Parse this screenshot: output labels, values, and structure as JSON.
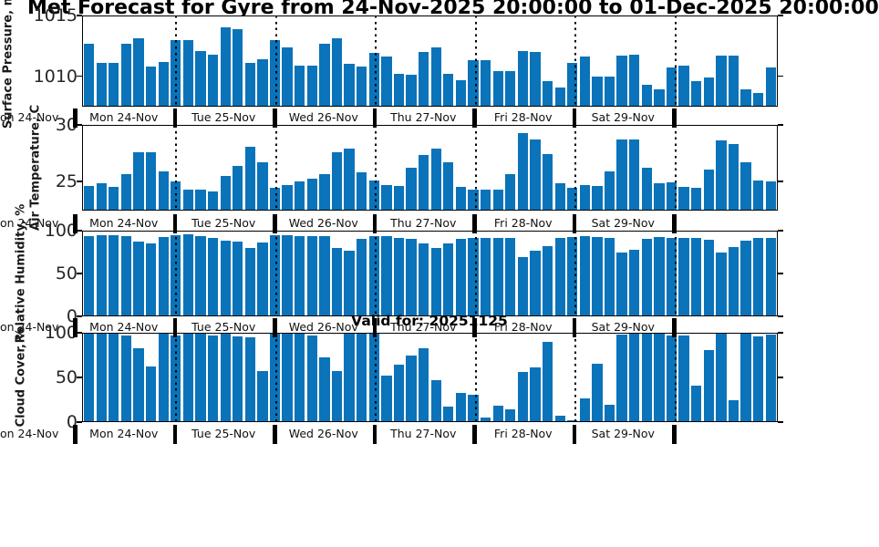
{
  "title": "Met Forecast for Gyre from 24-Nov-2025 20:00:00 to 01-Dec-2025 20:00:00",
  "valid_for": "Valid for: 20251125",
  "colors": {
    "bar": "#0a73b9",
    "axis": "#000000",
    "tick_text": "#262626"
  },
  "x_axis": {
    "clipped_left_label": "on 24-Nov",
    "day_labels": [
      "Mon 24-Nov",
      "Tue 25-Nov",
      "Wed 26-Nov",
      "Thu 27-Nov",
      "Fri 28-Nov",
      "Sat 29-Nov",
      ""
    ],
    "bars_per_day": 8
  },
  "chart_data": [
    {
      "type": "bar",
      "ylabel": "Surface Pressure, m",
      "yticks": [
        "1015",
        "1010"
      ],
      "ytick_values": [
        1015,
        1010
      ],
      "ylim": [
        1007.5,
        1015
      ],
      "values": [
        1012.7,
        1011.1,
        1011.1,
        1012.7,
        1013.1,
        1010.8,
        1011.2,
        1013.0,
        1013.0,
        1012.1,
        1011.8,
        1014.0,
        1013.9,
        1011.1,
        1011.4,
        1013.0,
        1012.4,
        1010.9,
        1010.9,
        1012.7,
        1013.1,
        1011.0,
        1010.8,
        1011.9,
        1011.6,
        1010.2,
        1010.1,
        1012.0,
        1012.4,
        1010.2,
        1009.7,
        1011.3,
        1011.3,
        1010.4,
        1010.4,
        1012.1,
        1012.0,
        1009.6,
        1009.1,
        1011.1,
        1011.6,
        1010.0,
        1010.0,
        1011.7,
        1011.8,
        1009.3,
        1008.9,
        1010.7,
        1010.9,
        1009.6,
        1009.9,
        1011.7,
        1011.7,
        1008.9,
        1008.6,
        1010.7
      ]
    },
    {
      "type": "bar",
      "ylabel": "Air Temperature, C",
      "yticks": [
        "30",
        "25"
      ],
      "ytick_values": [
        30,
        25
      ],
      "ylim": [
        22.4,
        30
      ],
      "values": [
        24.6,
        24.8,
        24.5,
        25.6,
        27.6,
        27.6,
        25.9,
        25.0,
        24.3,
        24.3,
        24.1,
        25.5,
        26.4,
        28.1,
        26.7,
        24.4,
        24.7,
        25.0,
        25.2,
        25.6,
        27.6,
        27.9,
        25.8,
        25.1,
        24.7,
        24.6,
        26.2,
        27.3,
        27.9,
        26.7,
        24.5,
        24.3,
        24.3,
        24.3,
        25.6,
        29.3,
        28.7,
        27.4,
        24.8,
        24.4,
        24.7,
        24.6,
        25.9,
        28.7,
        28.7,
        26.2,
        24.8,
        24.9,
        24.5,
        24.4,
        26.0,
        28.6,
        28.3,
        26.7,
        25.1,
        25.0
      ]
    },
    {
      "type": "bar",
      "ylabel": "Relative Humidity, %",
      "yticks": [
        "100",
        "50",
        "0"
      ],
      "ytick_values": [
        100,
        50,
        0
      ],
      "ylim": [
        0,
        100
      ],
      "values": [
        94,
        95,
        95,
        94,
        87,
        85,
        93,
        95,
        96,
        94,
        91,
        88,
        87,
        80,
        86,
        95,
        95,
        94,
        94,
        94,
        80,
        77,
        90,
        94,
        94,
        92,
        90,
        85,
        80,
        85,
        90,
        91,
        92,
        92,
        91,
        69,
        77,
        82,
        91,
        93,
        94,
        93,
        92,
        75,
        78,
        90,
        93,
        92,
        92,
        92,
        89,
        74,
        81,
        88,
        91,
        91
      ]
    },
    {
      "type": "bar",
      "ylabel": "Cloud Cover, %",
      "yticks": [
        "100",
        "50",
        "0"
      ],
      "ytick_values": [
        100,
        50,
        0
      ],
      "ylim": [
        0,
        100
      ],
      "values": [
        100,
        100,
        100,
        97,
        83,
        62,
        100,
        97,
        100,
        100,
        97,
        100,
        96,
        95,
        57,
        100,
        100,
        100,
        97,
        72,
        57,
        100,
        100,
        100,
        52,
        64,
        74,
        83,
        47,
        17,
        33,
        31,
        5,
        18,
        14,
        56,
        61,
        90,
        7,
        2,
        27,
        65,
        19,
        98,
        100,
        100,
        100,
        97,
        97,
        41,
        81,
        99,
        24,
        99,
        96,
        98
      ]
    }
  ]
}
